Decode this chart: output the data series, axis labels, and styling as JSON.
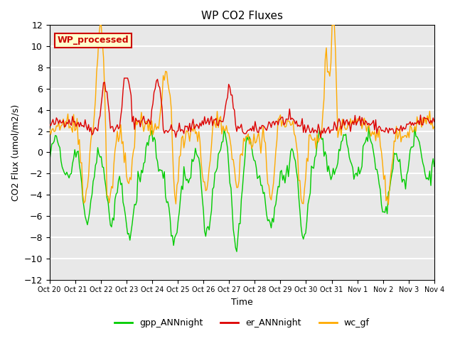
{
  "title": "WP CO2 Fluxes",
  "ylabel": "CO2 Flux (umol/m2/s)",
  "xlabel": "Time",
  "ylim": [
    -12,
    12
  ],
  "yticks": [
    -12,
    -10,
    -8,
    -6,
    -4,
    -2,
    0,
    2,
    4,
    6,
    8,
    10,
    12
  ],
  "xtick_labels": [
    "Oct 20",
    "Oct 21",
    "Oct 22",
    "Oct 23",
    "Oct 24",
    "Oct 25",
    "Oct 26",
    "Oct 27",
    "Oct 28",
    "Oct 29",
    "Oct 30",
    "Oct 31",
    "Nov 1",
    "Nov 2",
    "Nov 3",
    "Nov 4"
  ],
  "colors": {
    "gpp": "#00cc00",
    "er": "#dd0000",
    "wc": "#ffaa00"
  },
  "annotation_text": "WP_processed",
  "annotation_facecolor": "#ffffcc",
  "annotation_edgecolor": "#cc0000",
  "bg_color": "#e8e8e8",
  "plot_bg": "#e8e8e8",
  "linewidth": 1.0,
  "n_points": 336,
  "legend_entries": [
    "gpp_ANNnight",
    "er_ANNnight",
    "wc_gf"
  ],
  "figsize": [
    6.4,
    4.8
  ],
  "dpi": 100
}
